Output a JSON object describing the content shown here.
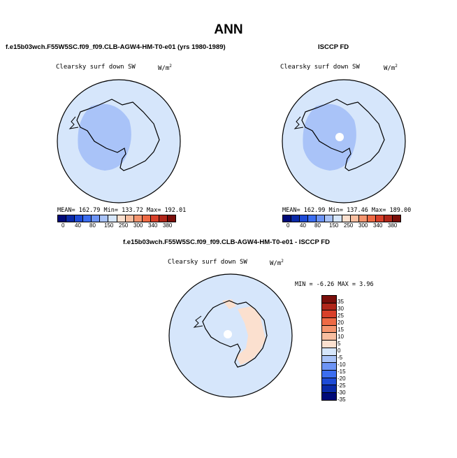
{
  "page_title": "ANN",
  "panels": {
    "model": {
      "header": "f.e15b03wch.F55W5SC.f09_f09.CLB-AGW4-HM-T0-e01 (yrs 1980-1989)",
      "variable": "Clearsky surf down SW",
      "units": "W/m",
      "units_sup": "2",
      "stats": "MEAN=  162.79   Min=  133.72   Max=  192.01"
    },
    "obs": {
      "header": "ISCCP FD",
      "variable": "Clearsky surf down SW",
      "units": "W/m",
      "units_sup": "2",
      "stats": "MEAN=  162.99   Min=  137.46   Max=  189.00"
    },
    "diff": {
      "header": "f.e15b03wch.F55W5SC.f09_f09.CLB-AGW4-HM-T0-e01 - ISCCP FD",
      "variable": "Clearsky surf down SW",
      "units": "W/m",
      "units_sup": "2",
      "stats": "MIN =   -6.26  MAX =    3.96"
    }
  },
  "abs_colorbar": {
    "colors": [
      "#000a78",
      "#0a2aa8",
      "#1e4bd6",
      "#3c6ef0",
      "#6d94f5",
      "#a9c3f8",
      "#d6e6fb",
      "#fbe0cf",
      "#f8bea0",
      "#f4946e",
      "#ee6a45",
      "#d8402a",
      "#b0261a",
      "#7a0e0a"
    ],
    "labels": [
      "0",
      "40",
      "80",
      "150",
      "250",
      "300",
      "340",
      "380"
    ]
  },
  "diff_colorbar": {
    "colors": [
      "#7a0e0a",
      "#b0261a",
      "#d8402a",
      "#ee6a45",
      "#f4946e",
      "#f8bea0",
      "#fbe0cf",
      "#d6e6fb",
      "#a9c3f8",
      "#6d94f5",
      "#3c6ef0",
      "#1e4bd6",
      "#0a2aa8",
      "#000a78"
    ],
    "labels": [
      "35",
      "30",
      "25",
      "20",
      "15",
      "10",
      "5",
      "0",
      "-5",
      "-10",
      "-15",
      "-20",
      "-25",
      "-30",
      "-35"
    ]
  }
}
